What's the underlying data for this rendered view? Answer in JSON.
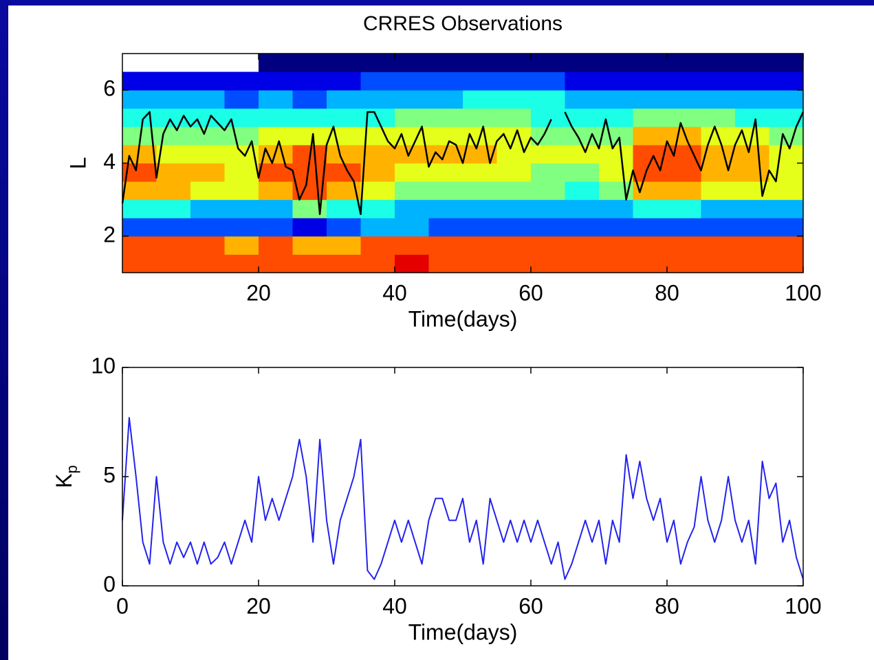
{
  "chart_data": [
    {
      "type": "heatmap",
      "title": "CRRES Observations",
      "xlabel": "Time(days)",
      "ylabel": "L",
      "xlim": [
        0,
        100
      ],
      "ylim": [
        1,
        7
      ],
      "xticks": [
        20,
        40,
        60,
        80,
        100
      ],
      "yticks": [
        2,
        4,
        6
      ],
      "colormap": "jet",
      "zlim": [
        0,
        10
      ],
      "x_edges": [
        0,
        5,
        10,
        15,
        20,
        25,
        30,
        35,
        40,
        45,
        50,
        55,
        60,
        65,
        70,
        75,
        80,
        85,
        90,
        95,
        100
      ],
      "y_edges": [
        1,
        1.5,
        2,
        2.5,
        3,
        3.5,
        4,
        4.5,
        5,
        5.5,
        6,
        6.5,
        7
      ],
      "z": [
        [
          8,
          8,
          2,
          4,
          7,
          8,
          7,
          5,
          4,
          3,
          1,
          null
        ],
        [
          8,
          8,
          2,
          4,
          7,
          7,
          6,
          5,
          4,
          3,
          1,
          null
        ],
        [
          8,
          8,
          2,
          3,
          6,
          7,
          6,
          5,
          4,
          3,
          1,
          null
        ],
        [
          8,
          7,
          2,
          3,
          6,
          6,
          6,
          5,
          4,
          2,
          1,
          null
        ],
        [
          8,
          8,
          2,
          3,
          7,
          8,
          7,
          6,
          4,
          3,
          1,
          0
        ],
        [
          8,
          7,
          1,
          5,
          8,
          8,
          8,
          6,
          4,
          2,
          1,
          0
        ],
        [
          8,
          7,
          2,
          4,
          7,
          8,
          7,
          6,
          4,
          3,
          1,
          0
        ],
        [
          8,
          8,
          3,
          4,
          6,
          7,
          7,
          6,
          4,
          3,
          2,
          0
        ],
        [
          9,
          8,
          3,
          3,
          5,
          6,
          7,
          6,
          5,
          3,
          2,
          0
        ],
        [
          8,
          8,
          2,
          3,
          5,
          6,
          7,
          6,
          5,
          3,
          2,
          0
        ],
        [
          8,
          8,
          2,
          3,
          5,
          6,
          7,
          6,
          5,
          4,
          2,
          0
        ],
        [
          8,
          8,
          2,
          3,
          5,
          6,
          6,
          6,
          5,
          4,
          2,
          0
        ],
        [
          8,
          8,
          2,
          3,
          5,
          5,
          6,
          5,
          4,
          4,
          2,
          0
        ],
        [
          8,
          8,
          2,
          3,
          4,
          5,
          6,
          5,
          4,
          3,
          1,
          0
        ],
        [
          8,
          8,
          2,
          3,
          5,
          6,
          6,
          5,
          4,
          3,
          1,
          0
        ],
        [
          8,
          8,
          2,
          4,
          7,
          8,
          8,
          7,
          5,
          3,
          1,
          0
        ],
        [
          8,
          8,
          2,
          4,
          7,
          8,
          8,
          7,
          5,
          3,
          1,
          0
        ],
        [
          8,
          8,
          2,
          3,
          6,
          7,
          7,
          6,
          5,
          3,
          1,
          0
        ],
        [
          8,
          8,
          2,
          3,
          6,
          7,
          7,
          6,
          4,
          3,
          1,
          0
        ],
        [
          8,
          8,
          2,
          3,
          6,
          6,
          6,
          5,
          4,
          3,
          1,
          0
        ]
      ],
      "line": {
        "color": "#000000",
        "x": [
          0,
          1,
          2,
          3,
          4,
          5,
          6,
          7,
          8,
          9,
          10,
          11,
          12,
          13,
          14,
          15,
          16,
          17,
          18,
          19,
          20,
          21,
          22,
          23,
          24,
          25,
          26,
          27,
          28,
          29,
          30,
          31,
          32,
          33,
          34,
          35,
          36,
          37,
          38,
          39,
          40,
          41,
          42,
          43,
          44,
          45,
          46,
          47,
          48,
          49,
          50,
          51,
          52,
          53,
          54,
          55,
          56,
          57,
          58,
          59,
          60,
          61,
          62,
          63,
          64,
          65,
          66,
          67,
          68,
          69,
          70,
          71,
          72,
          73,
          74,
          75,
          76,
          77,
          78,
          79,
          80,
          81,
          82,
          83,
          84,
          85,
          86,
          87,
          88,
          89,
          90,
          91,
          92,
          93,
          94,
          95,
          96,
          97,
          98,
          99,
          100
        ],
        "values": [
          2.9,
          4.2,
          3.8,
          5.2,
          5.4,
          3.6,
          4.8,
          5.2,
          4.9,
          5.3,
          5.0,
          5.2,
          4.8,
          5.3,
          5.1,
          4.9,
          5.2,
          4.4,
          4.2,
          4.6,
          3.6,
          4.4,
          4.0,
          4.6,
          3.9,
          3.8,
          3.0,
          3.4,
          4.8,
          2.6,
          4.5,
          5.0,
          4.2,
          3.8,
          3.5,
          2.6,
          5.4,
          5.4,
          5.0,
          4.6,
          4.4,
          4.8,
          4.2,
          4.6,
          5.0,
          3.9,
          4.3,
          4.1,
          4.6,
          4.5,
          4.0,
          4.8,
          4.4,
          5.0,
          4.0,
          4.6,
          4.8,
          4.4,
          4.9,
          4.3,
          4.7,
          4.5,
          4.8,
          5.2,
          null,
          5.4,
          5.0,
          4.7,
          4.3,
          4.8,
          4.4,
          5.2,
          4.4,
          4.7,
          3.0,
          3.8,
          3.2,
          3.8,
          4.2,
          3.8,
          4.6,
          4.2,
          5.1,
          4.6,
          4.2,
          3.8,
          4.5,
          5.0,
          4.5,
          3.8,
          4.5,
          4.9,
          4.3,
          5.2,
          3.1,
          3.8,
          3.5,
          4.8,
          4.4,
          5.0,
          5.4
        ]
      }
    },
    {
      "type": "line",
      "xlabel": "Time(days)",
      "ylabel": "K",
      "ylabel_sub": "p",
      "xlim": [
        0,
        100
      ],
      "ylim": [
        0,
        10
      ],
      "xticks": [
        0,
        20,
        40,
        60,
        80,
        100
      ],
      "yticks": [
        0,
        5,
        10
      ],
      "series": [
        {
          "color": "#2222ee",
          "x": [
            0,
            1,
            2,
            3,
            4,
            5,
            6,
            7,
            8,
            9,
            10,
            11,
            12,
            13,
            14,
            15,
            16,
            17,
            18,
            19,
            20,
            21,
            22,
            23,
            24,
            25,
            26,
            27,
            28,
            29,
            30,
            31,
            32,
            33,
            34,
            35,
            36,
            37,
            38,
            39,
            40,
            41,
            42,
            43,
            44,
            45,
            46,
            47,
            48,
            49,
            50,
            51,
            52,
            53,
            54,
            55,
            56,
            57,
            58,
            59,
            60,
            61,
            62,
            63,
            64,
            65,
            66,
            67,
            68,
            69,
            70,
            71,
            72,
            73,
            74,
            75,
            76,
            77,
            78,
            79,
            80,
            81,
            82,
            83,
            84,
            85,
            86,
            87,
            88,
            89,
            90,
            91,
            92,
            93,
            94,
            95,
            96,
            97,
            98,
            99,
            100
          ],
          "values": [
            3,
            7.7,
            5,
            2,
            1,
            5,
            2,
            1,
            2,
            1.3,
            2,
            1,
            2,
            1,
            1.3,
            2,
            1,
            2,
            3,
            2,
            5,
            3,
            4,
            3,
            4,
            5,
            6.7,
            5,
            2,
            6.7,
            3,
            1,
            3,
            4,
            5,
            6.7,
            0.7,
            0.3,
            1,
            2,
            3,
            2,
            3,
            2,
            1,
            3,
            4,
            4,
            3,
            3,
            4,
            2,
            3,
            1,
            4,
            3,
            2,
            3,
            2,
            3,
            2,
            3,
            2,
            1,
            2,
            0.3,
            1,
            2,
            3,
            2,
            3,
            1,
            3,
            2,
            6,
            4,
            5.7,
            4,
            3,
            4,
            2,
            3,
            1,
            2,
            2.7,
            5,
            3,
            2,
            3,
            5,
            3,
            2,
            3,
            1,
            5.7,
            4,
            4.7,
            2,
            3,
            1.3,
            0.3
          ]
        }
      ]
    }
  ]
}
